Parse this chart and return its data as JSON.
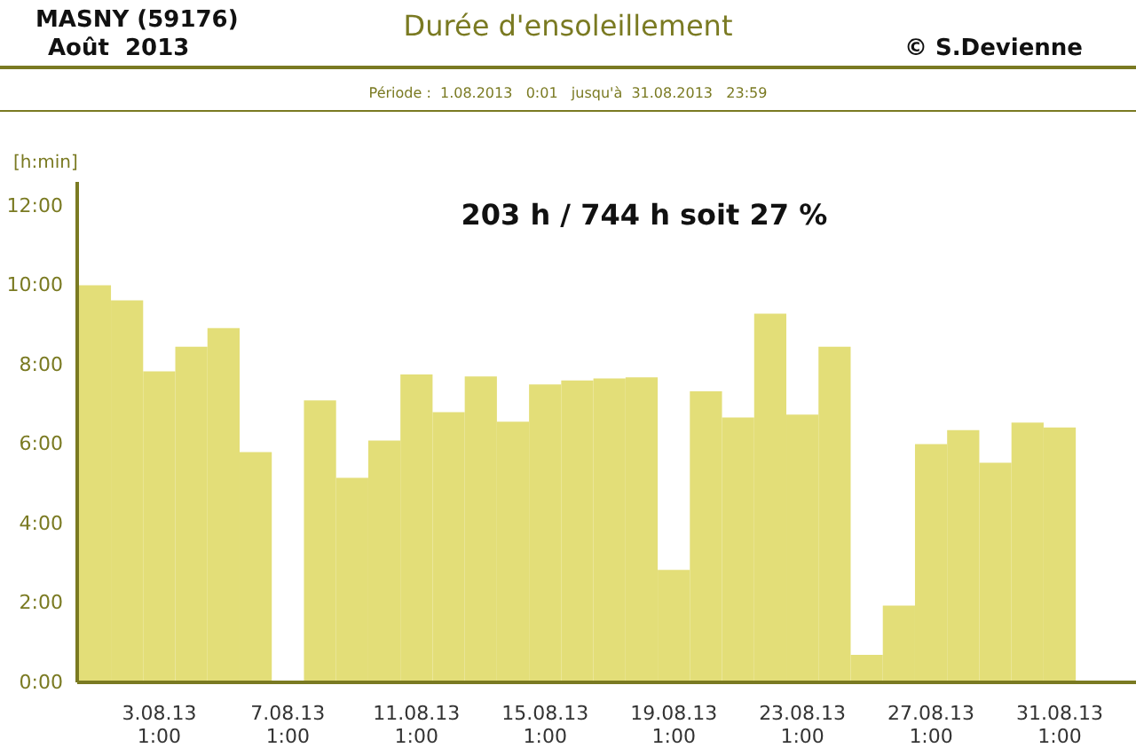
{
  "chart_data": {
    "type": "bar",
    "title": "Durée d'ensoleillement",
    "ylabel": "[h:min]",
    "annotations": [
      "MASNY (59176)",
      "Août  2013",
      "© S.Devienne",
      "Période :  1.08.2013   0:01   jusqu'à  31.08.2013   23:59",
      "203 h / 744 h  soit  27 %"
    ],
    "categories": [
      null,
      null,
      "3.08.13\n1:00",
      null,
      null,
      null,
      "7.08.13\n1:00",
      null,
      null,
      null,
      "11.08.13\n1:00",
      null,
      null,
      null,
      "15.08.13\n1:00",
      null,
      null,
      null,
      "19.08.13\n1:00",
      null,
      null,
      null,
      "23.08.13\n1:00",
      null,
      null,
      null,
      "27.08.13\n1:00",
      null,
      null,
      null,
      "31.08.13\n1:00"
    ],
    "values": [
      10.0,
      9.62,
      7.83,
      8.45,
      8.92,
      5.8,
      0,
      7.1,
      5.15,
      6.09,
      7.75,
      6.8,
      7.7,
      6.56,
      7.5,
      7.6,
      7.65,
      7.68,
      2.83,
      7.33,
      6.67,
      9.28,
      6.74,
      8.45,
      0.69,
      1.93,
      6.0,
      6.35,
      5.53,
      6.54,
      6.42
    ],
    "color": "#e3de78",
    "ylim": [
      0,
      12.6
    ],
    "yticks": [
      {
        "value": 0,
        "label": "0:00"
      },
      {
        "value": 2,
        "label": "2:00"
      },
      {
        "value": 4,
        "label": "4:00"
      },
      {
        "value": 6,
        "label": "6:00"
      },
      {
        "value": 8,
        "label": "8:00"
      },
      {
        "value": 10,
        "label": "10:00"
      },
      {
        "value": 12,
        "label": "12:00"
      }
    ]
  }
}
